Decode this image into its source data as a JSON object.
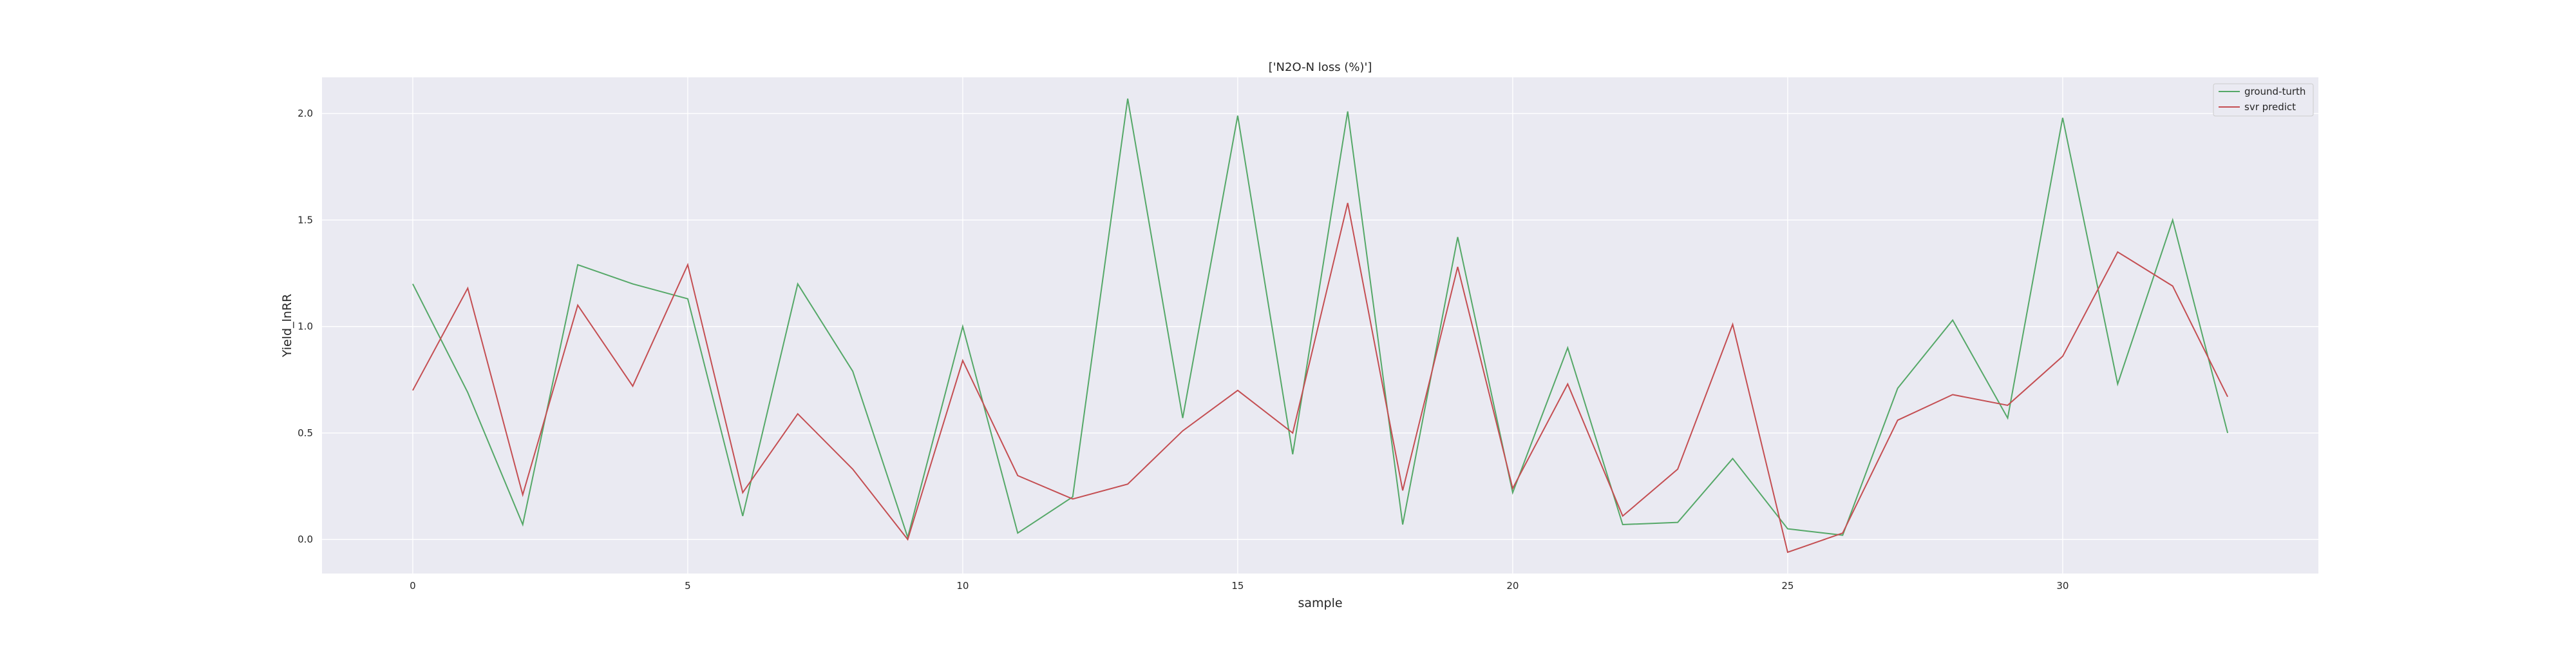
{
  "chart_data": {
    "type": "line",
    "title": "['N2O-N loss (%)']",
    "xlabel": "sample",
    "ylabel": "Yield_lnRR",
    "x": [
      0,
      1,
      2,
      3,
      4,
      5,
      6,
      7,
      8,
      9,
      10,
      11,
      12,
      13,
      14,
      15,
      16,
      17,
      18,
      19,
      20,
      21,
      22,
      23,
      24,
      25,
      26,
      27,
      28,
      29,
      30,
      31,
      32,
      33
    ],
    "xlim": [
      -1.65,
      34.65
    ],
    "ylim": [
      -0.16,
      2.17
    ],
    "xticks": [
      0,
      5,
      10,
      15,
      20,
      25,
      30
    ],
    "xtick_labels": [
      "0",
      "5",
      "10",
      "15",
      "20",
      "25",
      "30"
    ],
    "yticks": [
      0.0,
      0.5,
      1.0,
      1.5,
      2.0
    ],
    "ytick_labels": [
      "0.0",
      "0.5",
      "1.0",
      "1.5",
      "2.0"
    ],
    "grid": true,
    "legend_position": "top-right",
    "series": [
      {
        "name": "ground-turth",
        "color": "#55a868",
        "values": [
          1.2,
          0.69,
          0.07,
          1.29,
          1.2,
          1.13,
          0.11,
          1.2,
          0.79,
          0.01,
          1.0,
          0.03,
          0.2,
          2.07,
          0.57,
          1.99,
          0.4,
          2.01,
          0.07,
          1.42,
          0.22,
          0.9,
          0.07,
          0.08,
          0.38,
          0.05,
          0.02,
          0.71,
          1.03,
          0.57,
          1.98,
          0.73,
          1.5,
          0.5
        ]
      },
      {
        "name": "svr predict",
        "color": "#c44e52",
        "values": [
          0.7,
          1.18,
          0.21,
          1.1,
          0.72,
          1.29,
          0.22,
          0.59,
          0.33,
          0.0,
          0.84,
          0.3,
          0.19,
          0.26,
          0.51,
          0.7,
          0.5,
          1.58,
          0.23,
          1.28,
          0.24,
          0.73,
          0.11,
          0.33,
          1.01,
          -0.06,
          0.03,
          0.56,
          0.68,
          0.63,
          0.86,
          1.35,
          1.19,
          0.67
        ]
      }
    ]
  }
}
